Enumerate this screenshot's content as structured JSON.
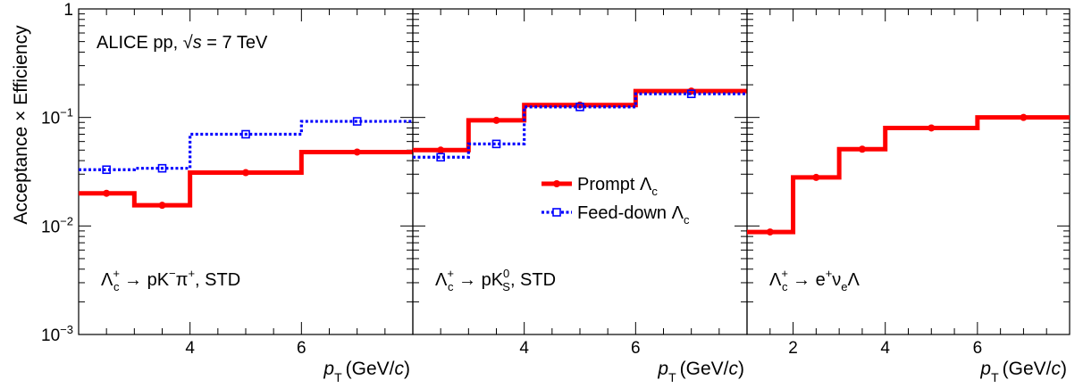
{
  "chart_data": {
    "type": "line",
    "ylabel": "Acceptance × Efficiency",
    "xlabel": "(GeV/c)",
    "xlabel_symbol": "p",
    "xlabel_subscript": "T",
    "yscale": "log",
    "ylim": [
      0.001,
      1
    ],
    "yticks": [
      {
        "base": "10",
        "exp": "−3"
      },
      {
        "base": "10",
        "exp": "−2"
      },
      {
        "base": "10",
        "exp": "−1"
      },
      {
        "base": "1",
        "exp": ""
      }
    ],
    "annotation": "ALICE  pp, √s = 7 TeV",
    "legend": {
      "placement": "center",
      "entries": [
        {
          "label": "Prompt Λ",
          "sub": "c",
          "color": "#ff0000",
          "style": "solid"
        },
        {
          "label": "Feed-down Λ",
          "sub": "c",
          "color": "#0000ff",
          "style": "dotted"
        }
      ]
    },
    "panels": [
      {
        "decay": {
          "pre": "Λ",
          "sup": "+",
          "sub": "c",
          "rest": " → pK",
          "rest_sup": "−",
          "rest2": "π",
          "rest2_sup": "+",
          "tail": ", STD"
        },
        "xlim": [
          2,
          8
        ],
        "xticks": [
          4,
          6
        ],
        "series": [
          {
            "name": "Prompt Λc",
            "bins": [
              2,
              3,
              4,
              6,
              8
            ],
            "values": [
              0.02,
              0.0155,
              0.031,
              0.048
            ],
            "points_x": [
              2.5,
              3.5,
              5,
              7
            ]
          },
          {
            "name": "Feed-down Λc",
            "bins": [
              2,
              3,
              4,
              6,
              8
            ],
            "values": [
              0.033,
              0.034,
              0.07,
              0.092
            ],
            "points_x": [
              2.5,
              3.5,
              5,
              7
            ]
          }
        ]
      },
      {
        "decay": {
          "pre": "Λ",
          "sup": "+",
          "sub": "c",
          "rest": " → pK",
          "rest_sup": "0",
          "rest_sub": "S",
          "tail": ", STD"
        },
        "xlim": [
          2,
          8
        ],
        "xticks": [
          4,
          6
        ],
        "series": [
          {
            "name": "Prompt Λc",
            "bins": [
              2,
              3,
              4,
              6,
              8
            ],
            "values": [
              0.05,
              0.094,
              0.13,
              0.175
            ],
            "points_x": [
              2.5,
              3.5,
              5,
              7
            ]
          },
          {
            "name": "Feed-down Λc",
            "bins": [
              2,
              3,
              4,
              6,
              8
            ],
            "values": [
              0.043,
              0.057,
              0.125,
              0.165
            ],
            "points_x": [
              2.5,
              3.5,
              5,
              7
            ]
          }
        ]
      },
      {
        "decay": {
          "pre": "Λ",
          "sup": "+",
          "sub": "c",
          "rest": " → e",
          "rest_sup": "+",
          "rest2": "ν",
          "rest2_sub": "e",
          "tail": "Λ"
        },
        "xlim": [
          1,
          8
        ],
        "xticks": [
          2,
          4,
          6
        ],
        "series": [
          {
            "name": "Prompt Λc",
            "bins": [
              1,
              2,
              3,
              4,
              6,
              8
            ],
            "values": [
              0.0088,
              0.028,
              0.051,
              0.08,
              0.1
            ],
            "points_x": [
              1.5,
              2.5,
              3.5,
              5,
              7
            ]
          }
        ]
      }
    ]
  }
}
